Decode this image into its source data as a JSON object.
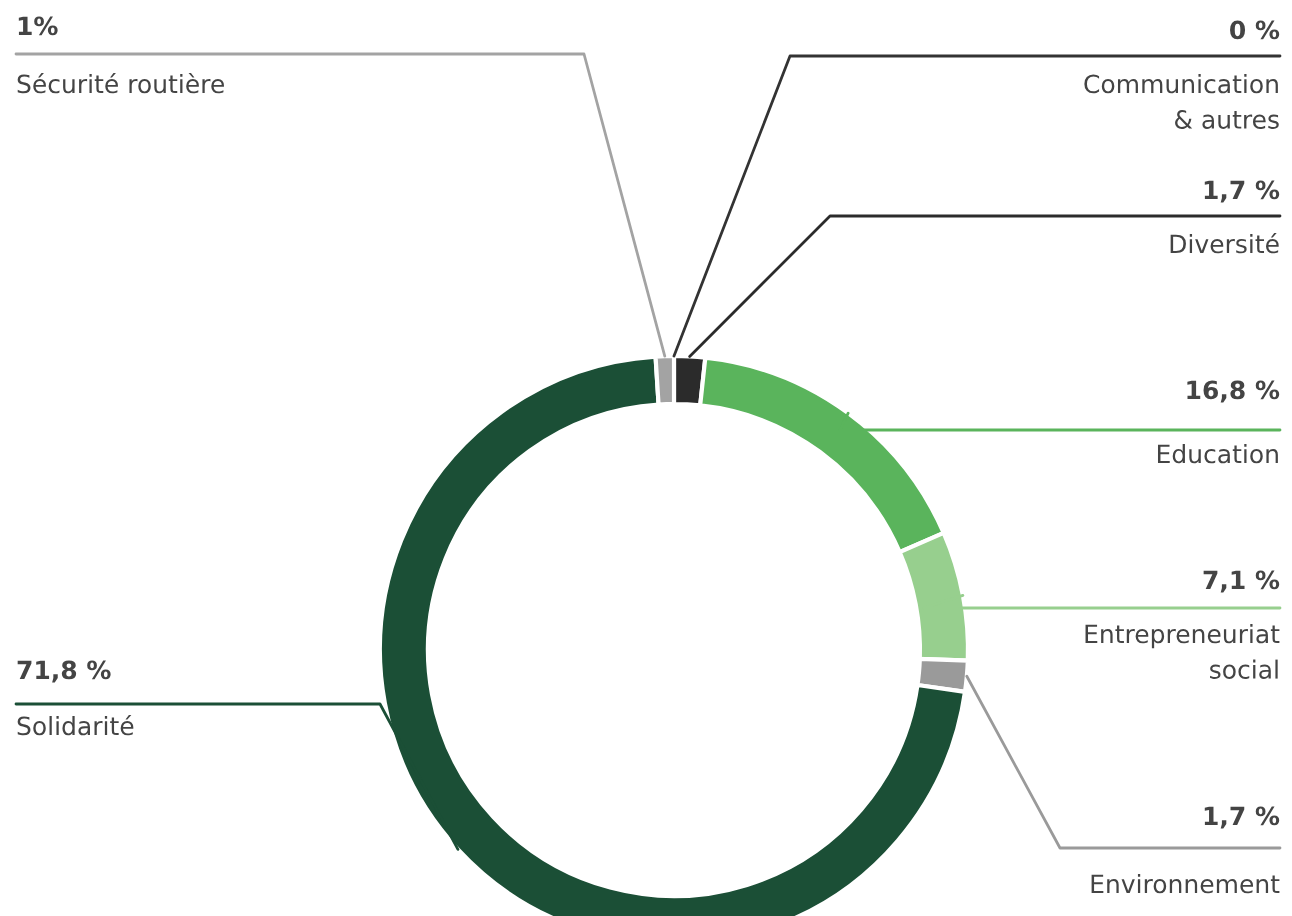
{
  "chart_data": {
    "type": "donut",
    "categories": [
      "Communication\n& autres",
      "Diversité",
      "Education",
      "Entrepreneuriat\nsocial",
      "Environnement",
      "Solidarité",
      "Sécurité routière"
    ],
    "values": [
      0,
      1.7,
      16.8,
      7.1,
      1.7,
      71.8,
      1
    ],
    "value_labels": [
      "0 %",
      "1,7 %",
      "16,8 %",
      "7,1 %",
      "1,7 %",
      "71,8 %",
      "1%"
    ],
    "colors": [
      "#333333",
      "#2b2b2b",
      "#5ab45c",
      "#97cf8e",
      "#9a9a9a",
      "#1b4f36",
      "#a3a3a3"
    ],
    "legend": false
  }
}
